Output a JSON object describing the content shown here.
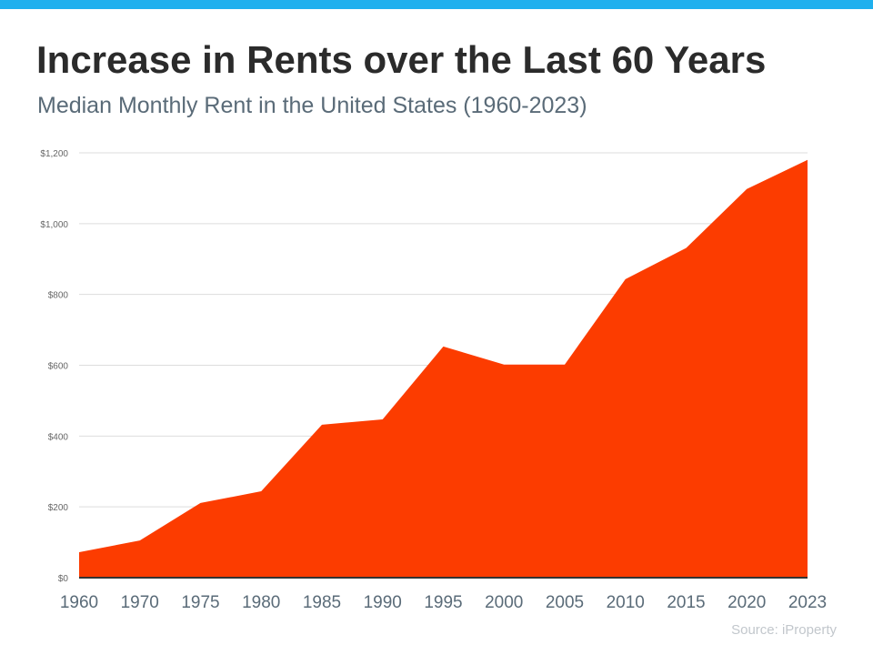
{
  "header": {
    "title": "Increase in Rents over the Last 60 Years",
    "subtitle": "Median Monthly Rent in the United States (1960-2023)"
  },
  "source": "Source: iProperty",
  "colors": {
    "accent_bar": "#1fb0ee",
    "area": "#fc3c00",
    "grid": "#dddddd",
    "baseline": "#333333"
  },
  "chart_data": {
    "type": "area",
    "categories": [
      "1960",
      "1970",
      "1975",
      "1980",
      "1985",
      "1990",
      "1995",
      "2000",
      "2005",
      "2010",
      "2015",
      "2020",
      "2023"
    ],
    "values": [
      72,
      105,
      211,
      244,
      432,
      447,
      653,
      602,
      602,
      843,
      931,
      1098,
      1180
    ],
    "ylim": [
      0,
      1200
    ],
    "yticks": [
      0,
      200,
      400,
      600,
      800,
      1000,
      1200
    ],
    "ytick_labels": [
      "$0",
      "$200",
      "$400",
      "$600",
      "$800",
      "$1,000",
      "$1,200"
    ],
    "grid": true,
    "legend": "none"
  }
}
